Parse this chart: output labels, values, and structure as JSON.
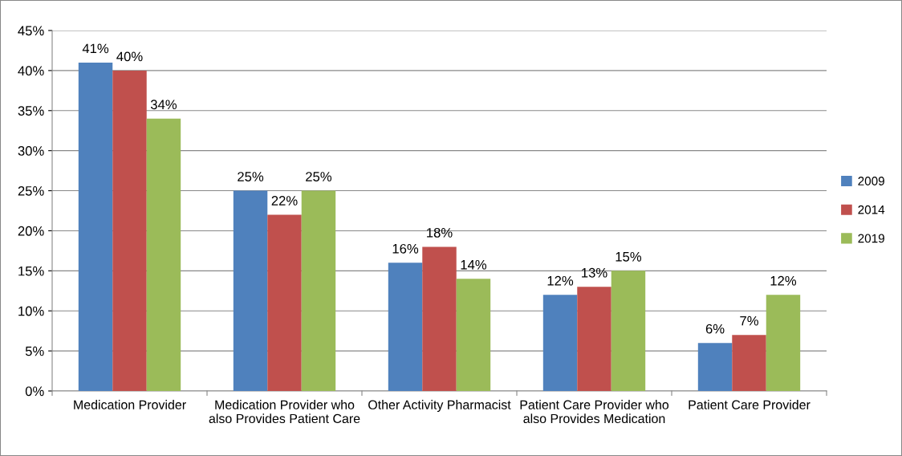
{
  "chart_data": {
    "type": "bar",
    "categories": [
      "Medication Provider",
      "Medication Provider who\nalso Provides Patient Care",
      "Other Activity Pharmacist",
      "Patient Care Provider who\nalso Provides Medication",
      "Patient Care Provider"
    ],
    "series": [
      {
        "name": "2009",
        "color": "#4f81bd",
        "values": [
          41,
          25,
          16,
          12,
          6
        ],
        "value_labels": [
          "41%",
          "25%",
          "16%",
          "12%",
          "6%"
        ]
      },
      {
        "name": "2014",
        "color": "#c0504d",
        "values": [
          40,
          22,
          18,
          13,
          7
        ],
        "value_labels": [
          "40%",
          "22%",
          "18%",
          "13%",
          "7%"
        ]
      },
      {
        "name": "2019",
        "color": "#9bbb59",
        "values": [
          34,
          25,
          14,
          15,
          12
        ],
        "value_labels": [
          "34%",
          "25%",
          "14%",
          "15%",
          "12%"
        ]
      }
    ],
    "ylim": [
      0,
      45
    ],
    "yticks": [
      {
        "value": 0,
        "label": "0%"
      },
      {
        "value": 5,
        "label": "5%"
      },
      {
        "value": 10,
        "label": "10%"
      },
      {
        "value": 15,
        "label": "15%"
      },
      {
        "value": 20,
        "label": "20%"
      },
      {
        "value": 25,
        "label": "25%"
      },
      {
        "value": 30,
        "label": "30%"
      },
      {
        "value": 35,
        "label": "35%"
      },
      {
        "value": 40,
        "label": "40%"
      },
      {
        "value": 45,
        "label": "45%"
      }
    ],
    "grid": "y",
    "legend": "right"
  }
}
